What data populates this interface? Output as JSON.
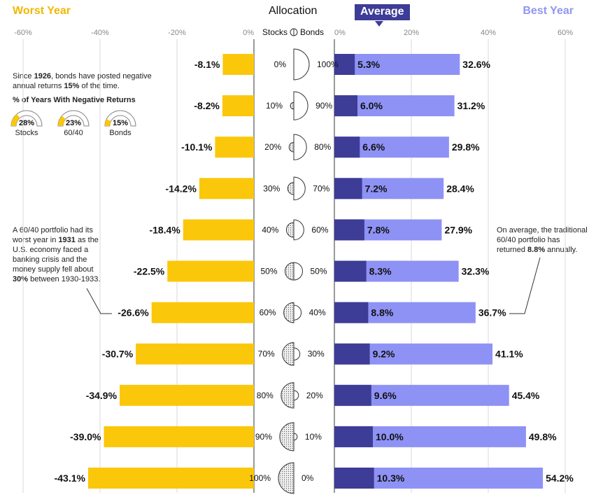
{
  "headers": {
    "worst": "Worst Year",
    "allocation": "Allocation",
    "average": "Average",
    "best": "Best Year",
    "stocks": "Stocks",
    "bonds": "Bonds"
  },
  "notes": {
    "since_pre": "Since ",
    "since_year": "1926",
    "since_mid": ", bonds have posted negative annual returns ",
    "since_pct": "15%",
    "since_post": " of the time.",
    "pct_title": "% of Years With Negative Returns",
    "sixty_forty_pre": "A 60/40 portfolio had its worst year in ",
    "sixty_forty_year": "1931",
    "sixty_forty_mid": " as the U.S. economy faced a banking crisis and the money supply fell about ",
    "sixty_forty_pct": "30%",
    "sixty_forty_post": " between 1930-1933.",
    "avg_pre": "On average, the traditional 60/40 portfolio has returned ",
    "avg_pct": "8.8%",
    "avg_post": " annually."
  },
  "gauges": [
    {
      "label": "Stocks",
      "value_text": "28%",
      "value": 28
    },
    {
      "label": "60/40",
      "value_text": "23%",
      "value": 23
    },
    {
      "label": "Bonds",
      "value_text": "15%",
      "value": 15
    }
  ],
  "colors": {
    "worst": "#fbc70a",
    "average": "#3d3c96",
    "best": "#8e92f5",
    "worst_title": "#f2b705",
    "best_title": "#9196f0",
    "grid": "#d9d9d9"
  },
  "chart_data": {
    "type": "bar",
    "rows": [
      {
        "stocks": "0%",
        "bonds": "100%",
        "stock_share": 0,
        "worst": -8.1,
        "worst_label": "-8.1%",
        "average": 5.3,
        "average_label": "5.3%",
        "best": 32.6,
        "best_label": "32.6%"
      },
      {
        "stocks": "10%",
        "bonds": "90%",
        "stock_share": 10,
        "worst": -8.2,
        "worst_label": "-8.2%",
        "average": 6.0,
        "average_label": "6.0%",
        "best": 31.2,
        "best_label": "31.2%"
      },
      {
        "stocks": "20%",
        "bonds": "80%",
        "stock_share": 20,
        "worst": -10.1,
        "worst_label": "-10.1%",
        "average": 6.6,
        "average_label": "6.6%",
        "best": 29.8,
        "best_label": "29.8%"
      },
      {
        "stocks": "30%",
        "bonds": "70%",
        "stock_share": 30,
        "worst": -14.2,
        "worst_label": "-14.2%",
        "average": 7.2,
        "average_label": "7.2%",
        "best": 28.4,
        "best_label": "28.4%"
      },
      {
        "stocks": "40%",
        "bonds": "60%",
        "stock_share": 40,
        "worst": -18.4,
        "worst_label": "-18.4%",
        "average": 7.8,
        "average_label": "7.8%",
        "best": 27.9,
        "best_label": "27.9%"
      },
      {
        "stocks": "50%",
        "bonds": "50%",
        "stock_share": 50,
        "worst": -22.5,
        "worst_label": "-22.5%",
        "average": 8.3,
        "average_label": "8.3%",
        "best": 32.3,
        "best_label": "32.3%"
      },
      {
        "stocks": "60%",
        "bonds": "40%",
        "stock_share": 60,
        "worst": -26.6,
        "worst_label": "-26.6%",
        "average": 8.8,
        "average_label": "8.8%",
        "best": 36.7,
        "best_label": "36.7%"
      },
      {
        "stocks": "70%",
        "bonds": "30%",
        "stock_share": 70,
        "worst": -30.7,
        "worst_label": "-30.7%",
        "average": 9.2,
        "average_label": "9.2%",
        "best": 41.1,
        "best_label": "41.1%"
      },
      {
        "stocks": "80%",
        "bonds": "20%",
        "stock_share": 80,
        "worst": -34.9,
        "worst_label": "-34.9%",
        "average": 9.6,
        "average_label": "9.6%",
        "best": 45.4,
        "best_label": "45.4%"
      },
      {
        "stocks": "90%",
        "bonds": "10%",
        "stock_share": 90,
        "worst": -39.0,
        "worst_label": "-39.0%",
        "average": 10.0,
        "average_label": "10.0%",
        "best": 49.8,
        "best_label": "49.8%"
      },
      {
        "stocks": "100%",
        "bonds": "0%",
        "stock_share": 100,
        "worst": -43.1,
        "worst_label": "-43.1%",
        "average": 10.3,
        "average_label": "10.3%",
        "best": 54.2,
        "best_label": "54.2%"
      }
    ],
    "left_axis": {
      "ticks": [
        -60,
        -40,
        -20,
        0
      ],
      "tick_labels": [
        "-60%",
        "-40%",
        "-20%",
        "0%"
      ],
      "xlim": [
        -60,
        0
      ]
    },
    "right_axis": {
      "ticks": [
        0,
        20,
        40,
        60
      ],
      "tick_labels": [
        "0%",
        "20%",
        "40%",
        "60%"
      ],
      "xlim": [
        0,
        60
      ]
    },
    "grid": true
  }
}
